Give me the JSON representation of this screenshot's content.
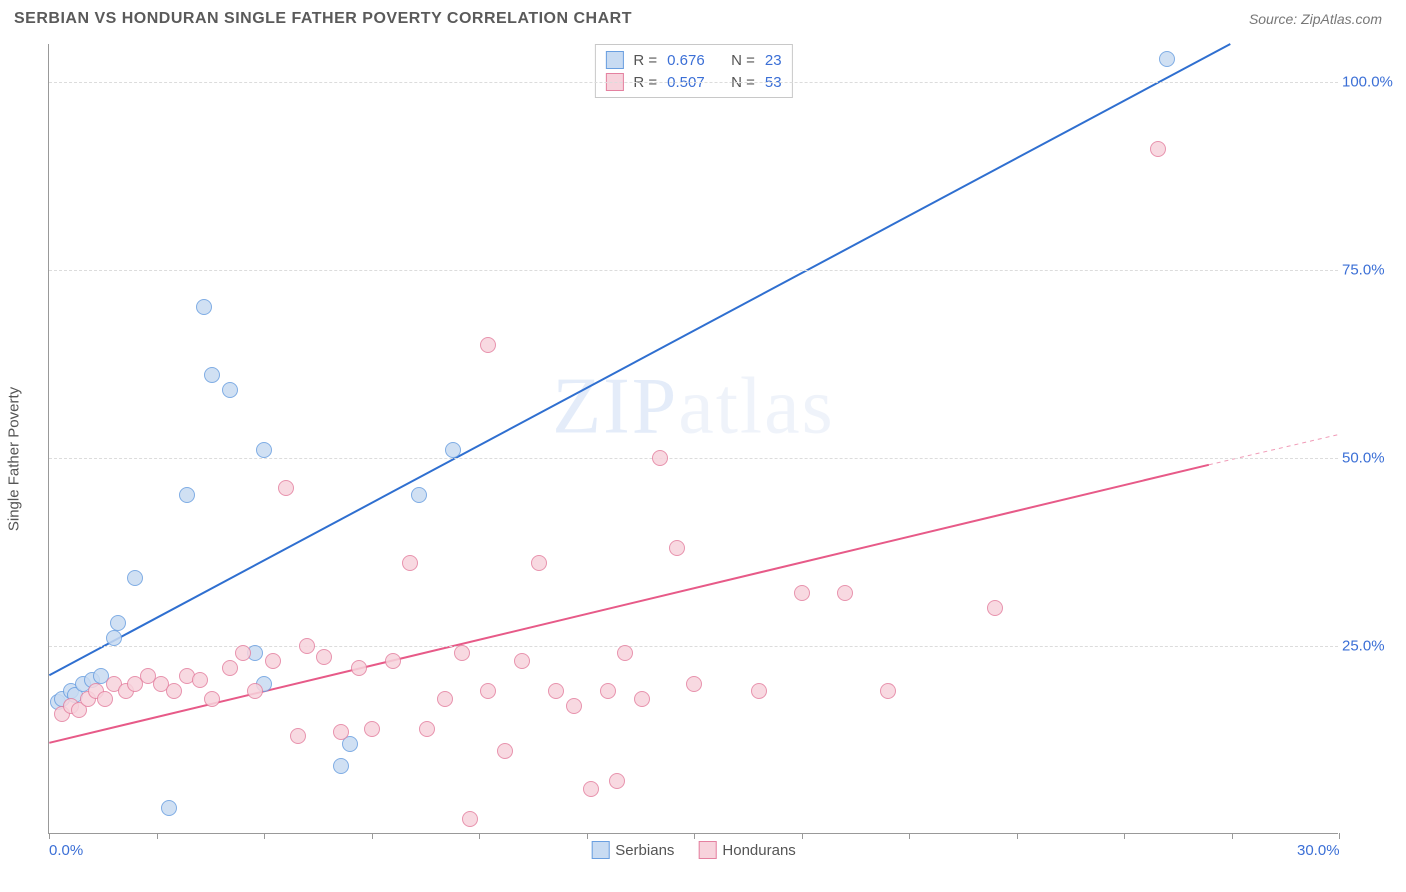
{
  "header": {
    "title": "SERBIAN VS HONDURAN SINGLE FATHER POVERTY CORRELATION CHART",
    "source_label": "Source:",
    "source_name": "ZipAtlas.com"
  },
  "chart": {
    "type": "scatter",
    "ylabel": "Single Father Poverty",
    "xlim": [
      0,
      30
    ],
    "ylim": [
      0,
      105
    ],
    "xticks": [
      0,
      2.5,
      5,
      7.5,
      10,
      12.5,
      15,
      17.5,
      20,
      22.5,
      25,
      27.5,
      30
    ],
    "xtick_labels": {
      "0": "0.0%",
      "30": "30.0%"
    },
    "yticks": [
      25,
      50,
      75,
      100
    ],
    "ytick_labels": [
      "25.0%",
      "50.0%",
      "75.0%",
      "100.0%"
    ],
    "grid_color": "#dcdcdc",
    "axis_color": "#999999",
    "background_color": "#ffffff",
    "tick_label_color": "#3b6fd6",
    "marker_radius": 8,
    "marker_stroke_width": 1.2,
    "line_width": 2,
    "watermark": "ZIPatlas",
    "series": [
      {
        "name": "Serbians",
        "fill_color": "#c8dbf2",
        "stroke_color": "#6a9fe0",
        "line_color": "#2f6fd0",
        "r": 0.676,
        "n": 23,
        "trend": {
          "x1": 0,
          "y1": 21,
          "x2": 27.5,
          "y2": 105
        },
        "points": [
          [
            0.2,
            17.5
          ],
          [
            0.3,
            18
          ],
          [
            0.5,
            19
          ],
          [
            0.6,
            18.5
          ],
          [
            0.8,
            20
          ],
          [
            1.0,
            20.5
          ],
          [
            1.2,
            21
          ],
          [
            1.5,
            26
          ],
          [
            1.6,
            28
          ],
          [
            2.0,
            34
          ],
          [
            2.8,
            3.5
          ],
          [
            3.2,
            45
          ],
          [
            3.8,
            61
          ],
          [
            4.2,
            59
          ],
          [
            3.6,
            70
          ],
          [
            5.0,
            51
          ],
          [
            4.8,
            24
          ],
          [
            5.0,
            20
          ],
          [
            6.8,
            9
          ],
          [
            7.0,
            12
          ],
          [
            8.6,
            45
          ],
          [
            9.4,
            51
          ],
          [
            26.0,
            103
          ]
        ]
      },
      {
        "name": "Hondurans",
        "fill_color": "#f7d3dc",
        "stroke_color": "#e481a0",
        "line_color": "#e75a88",
        "r": 0.507,
        "n": 53,
        "trend": {
          "x1": 0,
          "y1": 12,
          "x2": 27,
          "y2": 49
        },
        "trend_dash": {
          "x1": 27,
          "y1": 49,
          "x2": 30,
          "y2": 53
        },
        "points": [
          [
            0.3,
            16
          ],
          [
            0.5,
            17
          ],
          [
            0.7,
            16.5
          ],
          [
            0.9,
            18
          ],
          [
            1.1,
            19
          ],
          [
            1.3,
            18
          ],
          [
            1.5,
            20
          ],
          [
            1.8,
            19
          ],
          [
            2.0,
            20
          ],
          [
            2.3,
            21
          ],
          [
            2.6,
            20
          ],
          [
            2.9,
            19
          ],
          [
            3.2,
            21
          ],
          [
            3.5,
            20.5
          ],
          [
            3.8,
            18
          ],
          [
            4.2,
            22
          ],
          [
            4.5,
            24
          ],
          [
            4.8,
            19
          ],
          [
            5.2,
            23
          ],
          [
            5.5,
            46
          ],
          [
            5.8,
            13
          ],
          [
            6.0,
            25
          ],
          [
            6.4,
            23.5
          ],
          [
            6.8,
            13.5
          ],
          [
            7.2,
            22
          ],
          [
            7.5,
            14
          ],
          [
            8.0,
            23
          ],
          [
            8.4,
            36
          ],
          [
            8.8,
            14
          ],
          [
            9.2,
            18
          ],
          [
            9.6,
            24
          ],
          [
            9.8,
            2
          ],
          [
            10.2,
            19
          ],
          [
            10.6,
            11
          ],
          [
            10.2,
            65
          ],
          [
            11.0,
            23
          ],
          [
            11.4,
            36
          ],
          [
            11.8,
            19
          ],
          [
            12.2,
            17
          ],
          [
            12.6,
            6
          ],
          [
            13.0,
            19
          ],
          [
            13.2,
            7
          ],
          [
            13.4,
            24
          ],
          [
            13.8,
            18
          ],
          [
            14.2,
            50
          ],
          [
            14.6,
            38
          ],
          [
            15.0,
            20
          ],
          [
            16.5,
            19
          ],
          [
            17.5,
            32
          ],
          [
            18.5,
            32
          ],
          [
            19.5,
            19
          ],
          [
            25.8,
            91
          ],
          [
            22.0,
            30
          ]
        ]
      }
    ],
    "legend_bottom": [
      "Serbians",
      "Hondurans"
    ]
  }
}
